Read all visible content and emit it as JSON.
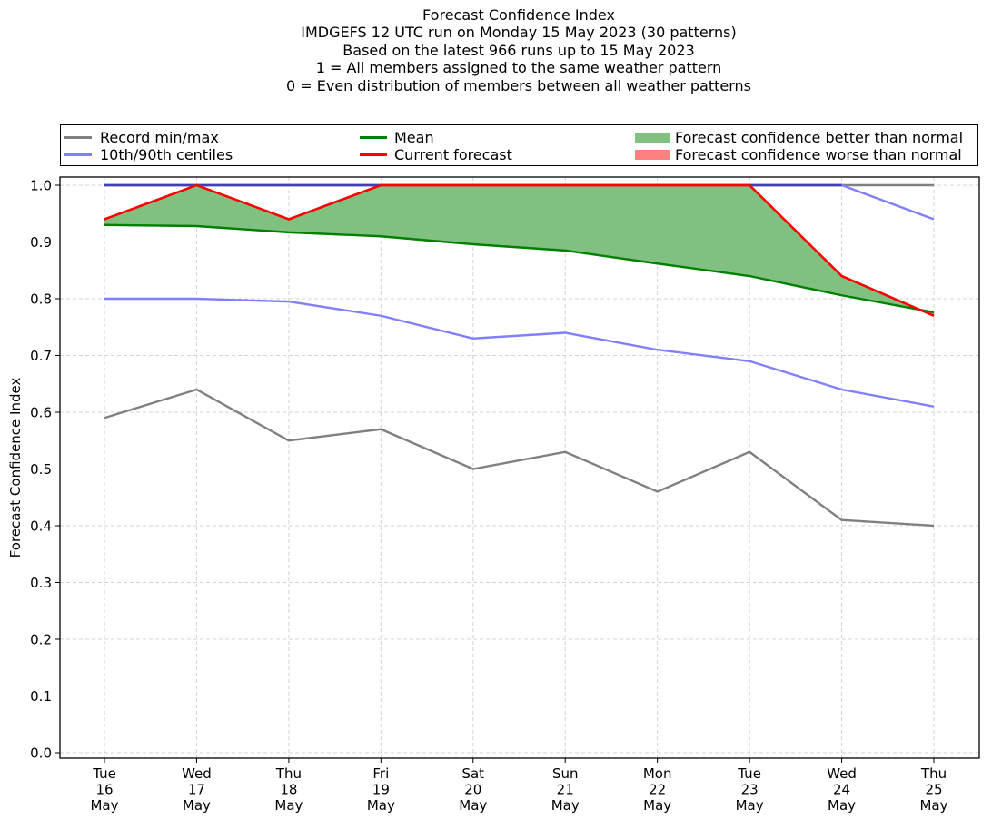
{
  "title_lines": [
    "Forecast Confidence Index",
    "IMDGEFS 12 UTC run on Monday 15 May 2023 (30 patterns)",
    "Based on the latest 966 runs up to 15 May 2023",
    "1 = All members assigned to the same weather pattern",
    "0 = Even distribution of members between all weather patterns"
  ],
  "legend": {
    "record": {
      "label": "Record min/max",
      "color": "#808080"
    },
    "centiles": {
      "label": "10th/90th centiles",
      "color": "#8080ff"
    },
    "mean": {
      "label": "Mean",
      "color": "#008000"
    },
    "current": {
      "label": "Current forecast",
      "color": "#ff0000"
    },
    "better": {
      "label": "Forecast confidence better than normal",
      "color": "#80c080"
    },
    "worse": {
      "label": "Forecast confidence worse than normal",
      "color": "#ff8080"
    }
  },
  "chart_data": {
    "type": "line",
    "title": "Forecast Confidence Index",
    "xlabel": "",
    "ylabel": "Forecast Confidence Index",
    "ylim": [
      0.0,
      1.0
    ],
    "yticks": [
      "0.0",
      "0.1",
      "0.2",
      "0.3",
      "0.4",
      "0.5",
      "0.6",
      "0.7",
      "0.8",
      "0.9",
      "1.0"
    ],
    "grid": true,
    "legend_position": "top (above plot)",
    "categories": [
      [
        "Tue",
        "16",
        "May"
      ],
      [
        "Wed",
        "17",
        "May"
      ],
      [
        "Thu",
        "18",
        "May"
      ],
      [
        "Fri",
        "19",
        "May"
      ],
      [
        "Sat",
        "20",
        "May"
      ],
      [
        "Sun",
        "21",
        "May"
      ],
      [
        "Mon",
        "22",
        "May"
      ],
      [
        "Tue",
        "23",
        "May"
      ],
      [
        "Wed",
        "24",
        "May"
      ],
      [
        "Thu",
        "25",
        "May"
      ]
    ],
    "series": [
      {
        "name": "Record max",
        "legend": "Record min/max",
        "color": "#808080",
        "values": [
          1.0,
          1.0,
          1.0,
          1.0,
          1.0,
          1.0,
          1.0,
          1.0,
          1.0,
          1.0
        ]
      },
      {
        "name": "Record min",
        "legend": "Record min/max",
        "color": "#808080",
        "values": [
          0.59,
          0.64,
          0.55,
          0.57,
          0.5,
          0.53,
          0.46,
          0.53,
          0.41,
          0.4
        ]
      },
      {
        "name": "90th centile",
        "legend": "10th/90th centiles",
        "color": "#8080ff",
        "values": [
          1.0,
          1.0,
          1.0,
          1.0,
          1.0,
          1.0,
          1.0,
          1.0,
          1.0,
          0.94
        ]
      },
      {
        "name": "10th centile",
        "legend": "10th/90th centiles",
        "color": "#8080ff",
        "values": [
          0.8,
          0.8,
          0.795,
          0.77,
          0.73,
          0.74,
          0.71,
          0.69,
          0.64,
          0.61
        ]
      },
      {
        "name": "Mean",
        "legend": "Mean",
        "color": "#008000",
        "values": [
          0.93,
          0.928,
          0.917,
          0.91,
          0.896,
          0.885,
          0.862,
          0.84,
          0.806,
          0.776
        ]
      },
      {
        "name": "Current forecast",
        "legend": "Current forecast",
        "color": "#ff0000",
        "values": [
          0.94,
          1.0,
          0.94,
          1.0,
          1.0,
          1.0,
          1.0,
          1.0,
          0.84,
          0.77
        ]
      }
    ],
    "fill_better_color": "#80c080",
    "fill_worse_color": "#ff8080"
  }
}
